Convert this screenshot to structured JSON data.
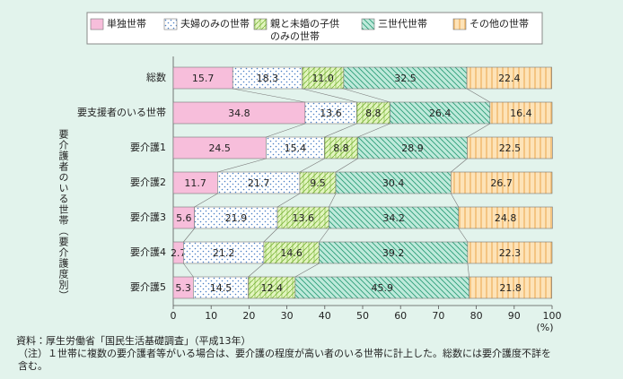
{
  "chart_data": {
    "type": "stacked-barh",
    "categories": [
      "総数",
      "要支援者のいる世帯",
      "要介護1",
      "要介護2",
      "要介護3",
      "要介護4",
      "要介護5"
    ],
    "series": [
      {
        "name": "単独世帯",
        "color": "#f7bedb",
        "pattern": "solid",
        "values": [
          15.7,
          34.8,
          24.5,
          11.7,
          5.6,
          2.7,
          5.3
        ]
      },
      {
        "name": "夫婦のみの世帯",
        "color": "#ffffff",
        "pattern": "dots",
        "values": [
          18.3,
          13.6,
          15.4,
          21.7,
          21.9,
          21.2,
          14.5
        ]
      },
      {
        "name": "親と未婚の子供のみの世帯",
        "color": "#e2f5bf",
        "pattern": "hatch",
        "values": [
          11.0,
          8.8,
          8.8,
          9.5,
          13.6,
          14.6,
          12.4
        ],
        "value_labels": [
          "11.0",
          "8.8",
          "8.8",
          "9.5",
          "13.6",
          "14.6",
          "12.4"
        ]
      },
      {
        "name": "三世代世帯",
        "color": "#bfeadb",
        "pattern": "diagonal",
        "values": [
          32.5,
          26.4,
          28.9,
          30.4,
          34.2,
          39.2,
          45.9
        ]
      },
      {
        "name": "その他の世帯",
        "color": "#fde3b8",
        "pattern": "vertical",
        "values": [
          22.4,
          16.4,
          22.5,
          26.7,
          24.8,
          22.3,
          21.8
        ]
      }
    ],
    "x_label": "(%)",
    "y_label": "要介護者のいる世帯（要介護度別）",
    "xlim": [
      0,
      100
    ],
    "xticks": [
      0,
      10,
      20,
      30,
      40,
      50,
      60,
      70,
      80,
      90,
      100
    ],
    "notes": [
      "資料：厚生労働省「国民生活基礎調査」（平成13年）",
      "（注）１世帯に複数の要介護者等がいる場合は、要介護の程度が高い者のいる世帯に計上した。総数には要介護度不詳を",
      "含む。"
    ]
  }
}
